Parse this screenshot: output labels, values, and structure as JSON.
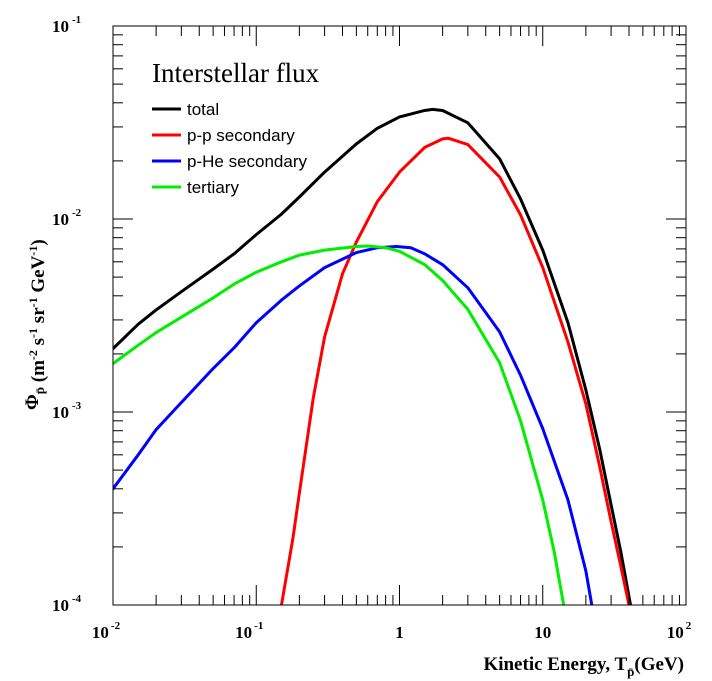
{
  "chart_data": {
    "type": "line",
    "title": "",
    "xlabel": "Kinetic Energy, T",
    "xlabel_sub": "p̄",
    "xlabel_unit": "(GeV)",
    "ylabel": "Φ",
    "ylabel_sub": "p̄",
    "ylabel_unit": "(m-2 s-1 sr-1 GeV-1)",
    "ylabel_parts": [
      {
        "t": "(m"
      },
      {
        "t": "-2",
        "sup": true
      },
      {
        "t": " s"
      },
      {
        "t": "-1",
        "sup": true
      },
      {
        "t": " sr"
      },
      {
        "t": "-1",
        "sup": true
      },
      {
        "t": " GeV"
      },
      {
        "t": "-1",
        "sup": true
      },
      {
        "t": ")"
      }
    ],
    "xscale": "log",
    "yscale": "log",
    "xlim": [
      0.01,
      100
    ],
    "ylim": [
      0.0001,
      0.1
    ],
    "grid": false,
    "x_ticks": [
      {
        "value": 0.01,
        "base": "10",
        "exp": "-2"
      },
      {
        "value": 0.1,
        "base": "10",
        "exp": "-1"
      },
      {
        "value": 1,
        "base": "1",
        "exp": ""
      },
      {
        "value": 10,
        "base": "10",
        "exp": ""
      },
      {
        "value": 100,
        "base": "10",
        "exp": "2"
      }
    ],
    "y_ticks": [
      {
        "value": 0.0001,
        "base": "10",
        "exp": "-4"
      },
      {
        "value": 0.001,
        "base": "10",
        "exp": "-3"
      },
      {
        "value": 0.01,
        "base": "10",
        "exp": "-2"
      },
      {
        "value": 0.1,
        "base": "10",
        "exp": "-1"
      }
    ],
    "legend": {
      "title": "Interstellar flux",
      "placement": "top-left",
      "entries": [
        "total",
        "p-p secondary",
        "p-He secondary",
        "tertiary"
      ]
    },
    "series": [
      {
        "name": "total",
        "color": "#000000",
        "points": [
          [
            0.01,
            0.00213
          ],
          [
            0.015,
            0.00285
          ],
          [
            0.02,
            0.00338
          ],
          [
            0.03,
            0.0042
          ],
          [
            0.05,
            0.0055
          ],
          [
            0.07,
            0.0066
          ],
          [
            0.1,
            0.0083
          ],
          [
            0.15,
            0.0106
          ],
          [
            0.2,
            0.013
          ],
          [
            0.3,
            0.0175
          ],
          [
            0.5,
            0.0245
          ],
          [
            0.7,
            0.0295
          ],
          [
            1.0,
            0.0338
          ],
          [
            1.5,
            0.0365
          ],
          [
            1.7,
            0.037
          ],
          [
            2.0,
            0.0365
          ],
          [
            3.0,
            0.0315
          ],
          [
            5.0,
            0.0205
          ],
          [
            7.0,
            0.0127
          ],
          [
            10.0,
            0.0069
          ],
          [
            15.0,
            0.0029
          ],
          [
            20.0,
            0.0013
          ],
          [
            25.0,
            0.00064
          ],
          [
            30.0,
            0.00033
          ],
          [
            35.0,
            0.00019
          ],
          [
            41.0,
            0.0001
          ]
        ]
      },
      {
        "name": "p-p secondary",
        "color": "#ff0000",
        "points": [
          [
            0.15,
            0.0001
          ],
          [
            0.18,
            0.00022
          ],
          [
            0.2,
            0.00038
          ],
          [
            0.25,
            0.00118
          ],
          [
            0.3,
            0.00245
          ],
          [
            0.4,
            0.0052
          ],
          [
            0.5,
            0.0076
          ],
          [
            0.7,
            0.0123
          ],
          [
            1.0,
            0.0175
          ],
          [
            1.5,
            0.0235
          ],
          [
            2.0,
            0.026
          ],
          [
            2.2,
            0.0262
          ],
          [
            3.0,
            0.0243
          ],
          [
            5.0,
            0.0165
          ],
          [
            7.0,
            0.0105
          ],
          [
            10.0,
            0.0056
          ],
          [
            15.0,
            0.0023
          ],
          [
            20.0,
            0.0011
          ],
          [
            25.0,
            0.00052
          ],
          [
            30.0,
            0.00027
          ],
          [
            35.0,
            0.00016
          ],
          [
            40.0,
            0.0001
          ]
        ]
      },
      {
        "name": "p-He secondary",
        "color": "#0000ff",
        "points": [
          [
            0.01,
            0.0004
          ],
          [
            0.015,
            0.0006
          ],
          [
            0.02,
            0.00081
          ],
          [
            0.03,
            0.00112
          ],
          [
            0.05,
            0.00168
          ],
          [
            0.07,
            0.00215
          ],
          [
            0.1,
            0.0029
          ],
          [
            0.15,
            0.0038
          ],
          [
            0.2,
            0.0045
          ],
          [
            0.3,
            0.0056
          ],
          [
            0.5,
            0.0067
          ],
          [
            0.7,
            0.0071
          ],
          [
            0.95,
            0.0072
          ],
          [
            1.2,
            0.0071
          ],
          [
            1.5,
            0.0066
          ],
          [
            2.0,
            0.0058
          ],
          [
            3.0,
            0.0044
          ],
          [
            5.0,
            0.0026
          ],
          [
            7.0,
            0.00155
          ],
          [
            10.0,
            0.00082
          ],
          [
            15.0,
            0.00035
          ],
          [
            20.0,
            0.00015
          ],
          [
            22.0,
            0.0001
          ]
        ]
      },
      {
        "name": "tertiary",
        "color": "#00ee00",
        "points": [
          [
            0.01,
            0.00178
          ],
          [
            0.015,
            0.00222
          ],
          [
            0.02,
            0.00258
          ],
          [
            0.03,
            0.0031
          ],
          [
            0.05,
            0.0039
          ],
          [
            0.07,
            0.0046
          ],
          [
            0.1,
            0.0053
          ],
          [
            0.15,
            0.006
          ],
          [
            0.2,
            0.0065
          ],
          [
            0.3,
            0.0069
          ],
          [
            0.5,
            0.0072
          ],
          [
            0.6,
            0.00725
          ],
          [
            0.8,
            0.0071
          ],
          [
            1.0,
            0.0068
          ],
          [
            1.5,
            0.0058
          ],
          [
            2.0,
            0.0048
          ],
          [
            3.0,
            0.0034
          ],
          [
            5.0,
            0.0018
          ],
          [
            7.0,
            0.0009
          ],
          [
            10.0,
            0.00035
          ],
          [
            12.0,
            0.00019
          ],
          [
            14.0,
            0.0001
          ]
        ]
      }
    ]
  }
}
